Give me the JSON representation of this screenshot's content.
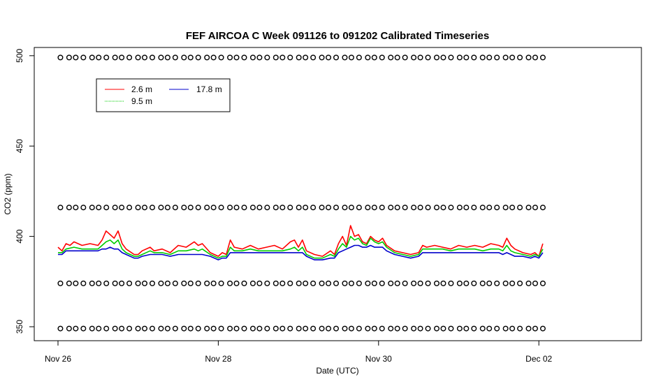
{
  "chart_data": {
    "type": "line",
    "title": "FEF AIRCOA C  Week 091126 to 091202  Calibrated Timeseries",
    "xlabel": "Date (UTC)",
    "ylabel": "CO2 (ppm)",
    "x_ticks": [
      "Nov 26",
      "Nov 28",
      "Nov 30",
      "Dec 02"
    ],
    "x_tick_days": [
      0,
      2,
      4,
      6
    ],
    "xlim_days": [
      -0.1,
      7.2
    ],
    "y_ticks": [
      "350",
      "400",
      "450",
      "500"
    ],
    "y_tick_values": [
      350,
      400,
      450,
      500
    ],
    "ylim": [
      344,
      512
    ],
    "grid": false,
    "legend_position": "top-left",
    "series": [
      {
        "name": "2.6 m",
        "color": "#ff0000",
        "points": [
          [
            0.0,
            394
          ],
          [
            0.05,
            392
          ],
          [
            0.1,
            396
          ],
          [
            0.15,
            395
          ],
          [
            0.2,
            397
          ],
          [
            0.3,
            395
          ],
          [
            0.4,
            396
          ],
          [
            0.5,
            395
          ],
          [
            0.55,
            398
          ],
          [
            0.6,
            403
          ],
          [
            0.65,
            401
          ],
          [
            0.7,
            399
          ],
          [
            0.75,
            403
          ],
          [
            0.8,
            396
          ],
          [
            0.85,
            393
          ],
          [
            0.95,
            390
          ],
          [
            1.0,
            390
          ],
          [
            1.05,
            392
          ],
          [
            1.15,
            394
          ],
          [
            1.2,
            392
          ],
          [
            1.3,
            393
          ],
          [
            1.4,
            391
          ],
          [
            1.5,
            395
          ],
          [
            1.6,
            394
          ],
          [
            1.7,
            397
          ],
          [
            1.75,
            395
          ],
          [
            1.8,
            396
          ],
          [
            1.9,
            391
          ],
          [
            2.0,
            389
          ],
          [
            2.05,
            391
          ],
          [
            2.1,
            390
          ],
          [
            2.15,
            398
          ],
          [
            2.2,
            394
          ],
          [
            2.3,
            393
          ],
          [
            2.4,
            395
          ],
          [
            2.5,
            393
          ],
          [
            2.6,
            394
          ],
          [
            2.7,
            395
          ],
          [
            2.8,
            393
          ],
          [
            2.9,
            397
          ],
          [
            2.95,
            398
          ],
          [
            3.0,
            394
          ],
          [
            3.05,
            398
          ],
          [
            3.1,
            392
          ],
          [
            3.2,
            390
          ],
          [
            3.3,
            389
          ],
          [
            3.4,
            392
          ],
          [
            3.45,
            390
          ],
          [
            3.5,
            396
          ],
          [
            3.55,
            400
          ],
          [
            3.6,
            395
          ],
          [
            3.65,
            406
          ],
          [
            3.7,
            400
          ],
          [
            3.75,
            401
          ],
          [
            3.8,
            397
          ],
          [
            3.85,
            396
          ],
          [
            3.9,
            400
          ],
          [
            3.95,
            398
          ],
          [
            4.0,
            397
          ],
          [
            4.05,
            399
          ],
          [
            4.1,
            395
          ],
          [
            4.2,
            392
          ],
          [
            4.3,
            391
          ],
          [
            4.4,
            390
          ],
          [
            4.5,
            391
          ],
          [
            4.55,
            395
          ],
          [
            4.6,
            394
          ],
          [
            4.7,
            395
          ],
          [
            4.8,
            394
          ],
          [
            4.9,
            393
          ],
          [
            5.0,
            395
          ],
          [
            5.1,
            394
          ],
          [
            5.2,
            395
          ],
          [
            5.3,
            394
          ],
          [
            5.4,
            396
          ],
          [
            5.5,
            395
          ],
          [
            5.55,
            394
          ],
          [
            5.6,
            399
          ],
          [
            5.65,
            395
          ],
          [
            5.7,
            393
          ],
          [
            5.8,
            391
          ],
          [
            5.9,
            390
          ],
          [
            5.95,
            391
          ],
          [
            6.0,
            389
          ],
          [
            6.05,
            396
          ]
        ]
      },
      {
        "name": "9.5 m",
        "color": "#00cc00",
        "points": [
          [
            0.0,
            391
          ],
          [
            0.05,
            391
          ],
          [
            0.1,
            393
          ],
          [
            0.2,
            394
          ],
          [
            0.3,
            393
          ],
          [
            0.4,
            393
          ],
          [
            0.5,
            393
          ],
          [
            0.55,
            395
          ],
          [
            0.6,
            397
          ],
          [
            0.65,
            398
          ],
          [
            0.7,
            396
          ],
          [
            0.75,
            398
          ],
          [
            0.8,
            393
          ],
          [
            0.85,
            391
          ],
          [
            0.95,
            389
          ],
          [
            1.0,
            389
          ],
          [
            1.05,
            390
          ],
          [
            1.15,
            392
          ],
          [
            1.2,
            391
          ],
          [
            1.3,
            391
          ],
          [
            1.4,
            390
          ],
          [
            1.5,
            392
          ],
          [
            1.6,
            392
          ],
          [
            1.7,
            393
          ],
          [
            1.75,
            392
          ],
          [
            1.8,
            393
          ],
          [
            1.9,
            390
          ],
          [
            2.0,
            388
          ],
          [
            2.05,
            389
          ],
          [
            2.1,
            389
          ],
          [
            2.15,
            394
          ],
          [
            2.2,
            392
          ],
          [
            2.3,
            392
          ],
          [
            2.4,
            393
          ],
          [
            2.5,
            392
          ],
          [
            2.6,
            392
          ],
          [
            2.7,
            392
          ],
          [
            2.8,
            392
          ],
          [
            2.9,
            393
          ],
          [
            2.95,
            394
          ],
          [
            3.0,
            392
          ],
          [
            3.05,
            394
          ],
          [
            3.1,
            390
          ],
          [
            3.2,
            388
          ],
          [
            3.3,
            388
          ],
          [
            3.4,
            390
          ],
          [
            3.45,
            389
          ],
          [
            3.5,
            393
          ],
          [
            3.55,
            396
          ],
          [
            3.6,
            394
          ],
          [
            3.65,
            400
          ],
          [
            3.7,
            398
          ],
          [
            3.75,
            399
          ],
          [
            3.8,
            396
          ],
          [
            3.85,
            395
          ],
          [
            3.9,
            399
          ],
          [
            3.95,
            397
          ],
          [
            4.0,
            396
          ],
          [
            4.05,
            397
          ],
          [
            4.1,
            394
          ],
          [
            4.2,
            391
          ],
          [
            4.3,
            390
          ],
          [
            4.4,
            389
          ],
          [
            4.5,
            390
          ],
          [
            4.55,
            393
          ],
          [
            4.6,
            393
          ],
          [
            4.7,
            393
          ],
          [
            4.8,
            393
          ],
          [
            4.9,
            392
          ],
          [
            5.0,
            393
          ],
          [
            5.1,
            393
          ],
          [
            5.2,
            393
          ],
          [
            5.3,
            392
          ],
          [
            5.4,
            393
          ],
          [
            5.5,
            393
          ],
          [
            5.55,
            392
          ],
          [
            5.6,
            395
          ],
          [
            5.65,
            392
          ],
          [
            5.7,
            391
          ],
          [
            5.8,
            390
          ],
          [
            5.9,
            389
          ],
          [
            5.95,
            390
          ],
          [
            6.0,
            389
          ],
          [
            6.05,
            393
          ]
        ]
      },
      {
        "name": "17.8 m",
        "color": "#0000cc",
        "points": [
          [
            0.0,
            390
          ],
          [
            0.05,
            390
          ],
          [
            0.1,
            392
          ],
          [
            0.2,
            392
          ],
          [
            0.3,
            392
          ],
          [
            0.4,
            392
          ],
          [
            0.5,
            392
          ],
          [
            0.55,
            393
          ],
          [
            0.6,
            393
          ],
          [
            0.65,
            394
          ],
          [
            0.7,
            393
          ],
          [
            0.75,
            393
          ],
          [
            0.8,
            391
          ],
          [
            0.85,
            390
          ],
          [
            0.95,
            388
          ],
          [
            1.0,
            388
          ],
          [
            1.05,
            389
          ],
          [
            1.15,
            390
          ],
          [
            1.2,
            390
          ],
          [
            1.3,
            390
          ],
          [
            1.4,
            389
          ],
          [
            1.5,
            390
          ],
          [
            1.6,
            390
          ],
          [
            1.7,
            390
          ],
          [
            1.75,
            390
          ],
          [
            1.8,
            390
          ],
          [
            1.9,
            389
          ],
          [
            2.0,
            387
          ],
          [
            2.05,
            388
          ],
          [
            2.1,
            388
          ],
          [
            2.15,
            391
          ],
          [
            2.2,
            391
          ],
          [
            2.3,
            391
          ],
          [
            2.4,
            391
          ],
          [
            2.5,
            391
          ],
          [
            2.6,
            391
          ],
          [
            2.7,
            391
          ],
          [
            2.8,
            391
          ],
          [
            2.9,
            391
          ],
          [
            2.95,
            391
          ],
          [
            3.0,
            391
          ],
          [
            3.05,
            391
          ],
          [
            3.1,
            389
          ],
          [
            3.2,
            387
          ],
          [
            3.3,
            387
          ],
          [
            3.4,
            388
          ],
          [
            3.45,
            388
          ],
          [
            3.5,
            391
          ],
          [
            3.55,
            392
          ],
          [
            3.6,
            393
          ],
          [
            3.65,
            394
          ],
          [
            3.7,
            395
          ],
          [
            3.75,
            395
          ],
          [
            3.8,
            394
          ],
          [
            3.85,
            394
          ],
          [
            3.9,
            395
          ],
          [
            3.95,
            394
          ],
          [
            4.0,
            394
          ],
          [
            4.05,
            394
          ],
          [
            4.1,
            392
          ],
          [
            4.2,
            390
          ],
          [
            4.3,
            389
          ],
          [
            4.4,
            388
          ],
          [
            4.5,
            389
          ],
          [
            4.55,
            391
          ],
          [
            4.6,
            391
          ],
          [
            4.7,
            391
          ],
          [
            4.8,
            391
          ],
          [
            4.9,
            391
          ],
          [
            5.0,
            391
          ],
          [
            5.1,
            391
          ],
          [
            5.2,
            391
          ],
          [
            5.3,
            391
          ],
          [
            5.4,
            391
          ],
          [
            5.5,
            391
          ],
          [
            5.55,
            390
          ],
          [
            5.6,
            391
          ],
          [
            5.65,
            390
          ],
          [
            5.7,
            389
          ],
          [
            5.8,
            389
          ],
          [
            5.9,
            388
          ],
          [
            5.95,
            389
          ],
          [
            6.0,
            388
          ],
          [
            6.05,
            391
          ]
        ]
      },
      {
        "name": "",
        "color": "#000000",
        "style": "circles",
        "levels": [
          499,
          416,
          374,
          349
        ],
        "x_range_days": [
          0.03,
          6.05
        ],
        "count_per_level": 64
      }
    ]
  }
}
